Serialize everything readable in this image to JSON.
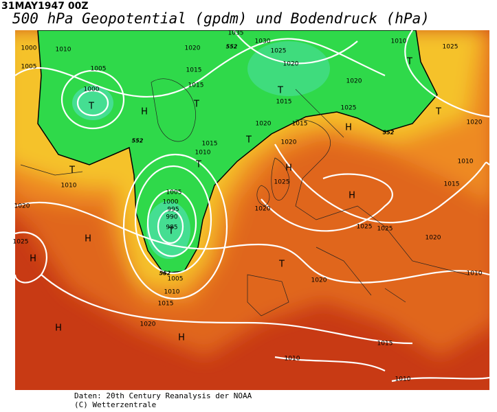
{
  "header": {
    "date": "31MAY1947 00Z",
    "title": "500 hPa Geopotential (gpdm) und Bodendruck (hPa)"
  },
  "map": {
    "isobar_labels": [
      "1000",
      "1010",
      "1005",
      "1005",
      "1000",
      "1020",
      "1015",
      "1015",
      "1035",
      "1030",
      "1025",
      "1020",
      "1015",
      "1020",
      "1025",
      "1020",
      "1015",
      "1010",
      "1020",
      "1015",
      "1010",
      "1025",
      "1020",
      "1010",
      "1015",
      "1010",
      "1020",
      "1025",
      "1005",
      "1000",
      "995",
      "990",
      "985",
      "1020",
      "1025",
      "1025",
      "1020",
      "1025",
      "1005",
      "1010",
      "1015",
      "1020",
      "1020",
      "1015",
      "1010",
      "1010",
      "1010"
    ],
    "centers": [
      "T",
      "H",
      "T",
      "T",
      "T",
      "T",
      "H",
      "T",
      "T",
      "H",
      "T",
      "T",
      "H",
      "H",
      "H",
      "T",
      "H",
      "H"
    ],
    "height_labels": [
      "552",
      "552",
      "552",
      "552"
    ]
  },
  "footer": {
    "source": "Daten: 20th Century Reanalysis der NOAA",
    "copyright": "(C) Wetterzentrale"
  }
}
